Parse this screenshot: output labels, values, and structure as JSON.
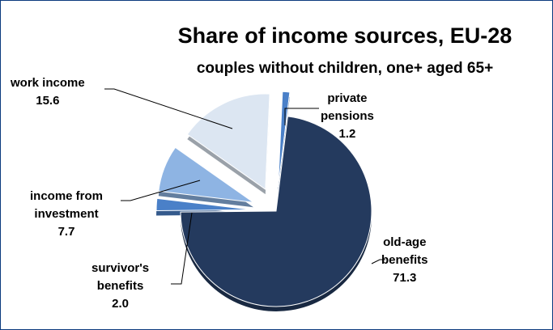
{
  "chart_data": {
    "type": "pie",
    "title": "Share of income sources, EU-28",
    "subtitle": "couples without children, one+ aged 65+",
    "slices": [
      {
        "label_lines": [
          "old-age",
          "benefits"
        ],
        "value": 71.3,
        "value_text": "71.3",
        "color": "#243a5e",
        "explode": 0
      },
      {
        "label_lines": [
          "survivor's",
          "benefits"
        ],
        "value": 2.0,
        "value_text": "2.0",
        "color": "#4a80c8",
        "explode": 30
      },
      {
        "label_lines": [
          "income from",
          "investment"
        ],
        "value": 7.7,
        "value_text": "7.7",
        "color": "#8eb4e3",
        "explode": 30
      },
      {
        "label_lines": [
          "work income"
        ],
        "value": 15.6,
        "value_text": "15.6",
        "color": "#dce6f2",
        "explode": 30
      },
      {
        "label_lines": [
          "private",
          "pensions"
        ],
        "value": 1.2,
        "value_text": "1.2",
        "color": "#4a80c8",
        "explode": 30
      }
    ]
  }
}
